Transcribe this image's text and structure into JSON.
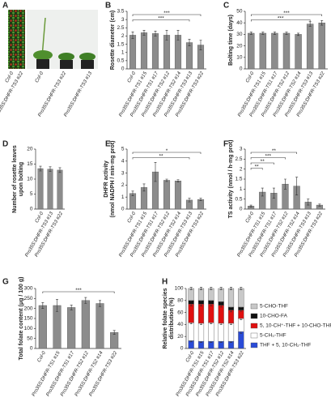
{
  "chart_data": [
    {
      "type": "image",
      "label": "A",
      "captions": [
        "Col-0",
        "Pro35S:DHFR-TS3 #22",
        "Col-0",
        "Pro35S:DHFR-TS3 #22",
        "Pro35S:DHFR-TS3 #13"
      ]
    },
    {
      "type": "bar",
      "label": "B",
      "y_label": [
        "Rosette diameter (cm)"
      ],
      "categories": [
        "Col-0",
        "Pro35S:DHFR-TS1 #15",
        "Pro35S:DHFR-TS1 #17",
        "Pro35S:DHFR-TS2 #12",
        "Pro35S:DHFR-TS2 #14",
        "Pro35S:DHFR-TS3 #13",
        "Pro35S:DHFR-TS3 #22"
      ],
      "values": [
        2.05,
        2.2,
        2.15,
        2.05,
        2.05,
        1.6,
        1.45
      ],
      "errors": [
        0.2,
        0.15,
        0.15,
        0.3,
        0.3,
        0.2,
        0.3
      ],
      "color": "#8c8c8c",
      "ylim": [
        0,
        3.5
      ],
      "yticks": [
        0,
        0.5,
        1,
        1.5,
        2,
        2.5,
        3,
        3.5
      ],
      "significance": [
        {
          "label": "***",
          "from": "Col-0",
          "to": "Pro35S:DHFR-TS3 #22"
        },
        {
          "label": "***",
          "from": "Col-0",
          "to": "Pro35S:DHFR-TS3 #13"
        }
      ]
    },
    {
      "type": "bar",
      "label": "C",
      "y_label": [
        "Bolting time (days)"
      ],
      "categories": [
        "Col-0",
        "Pro35S:DHFR-TS1 #15",
        "Pro35S:DHFR-TS1 #17",
        "Pro35S:DHFR-TS2 #12",
        "Pro35S:DHFR-TS2 #14",
        "Pro35S:DHFR-TS3 #13",
        "Pro35S:DHFR-TS3 #22"
      ],
      "values": [
        31,
        31,
        31,
        31,
        30,
        39,
        40
      ],
      "errors": [
        1,
        1,
        1,
        1,
        1,
        2,
        2
      ],
      "color": "#8c8c8c",
      "ylim": [
        0,
        50
      ],
      "yticks": [
        0,
        10,
        20,
        30,
        40,
        50
      ],
      "significance": [
        {
          "label": "***",
          "from": "Col-0",
          "to": "Pro35S:DHFR-TS3 #22"
        },
        {
          "label": "***",
          "from": "Col-0",
          "to": "Pro35S:DHFR-TS3 #13"
        }
      ]
    },
    {
      "type": "bar",
      "label": "D",
      "y_label": [
        "Number of rosette leaves",
        "upon bolting"
      ],
      "categories": [
        "Col-0",
        "Pro35S:DHFR-TS3 #13",
        "Pro35S:DHFR-TS3 #22"
      ],
      "values": [
        13.5,
        13.3,
        13
      ],
      "errors": [
        0.8,
        0.8,
        0.8
      ],
      "color": "#8c8c8c",
      "ylim": [
        0,
        20
      ],
      "yticks": [
        0,
        5,
        10,
        15,
        20
      ]
    },
    {
      "type": "bar",
      "label": "E",
      "y_label": [
        "DHFR activity",
        "(nmol NADPH / min·mg prot)"
      ],
      "categories": [
        "Col-0",
        "Pro35S:DHFR-TS1 #15",
        "Pro35S:DHFR-TS1 #17",
        "Pro35S:DHFR-TS2 #12",
        "Pro35S:DHFR-TS2 #14",
        "Pro35S:DHFR-TS3 #13",
        "Pro35S:DHFR-TS3 #22"
      ],
      "values": [
        1.3,
        1.8,
        3.1,
        2.4,
        2.35,
        0.75,
        0.8
      ],
      "errors": [
        0.2,
        0.3,
        0.8,
        0.1,
        0.1,
        0.15,
        0.1
      ],
      "color": "#8c8c8c",
      "ylim": [
        0,
        5
      ],
      "yticks": [
        0,
        1,
        2,
        3,
        4,
        5
      ],
      "significance": [
        {
          "label": "*",
          "from": "Col-0",
          "to": "Pro35S:DHFR-TS3 #22"
        },
        {
          "label": "**",
          "from": "Col-0",
          "to": "Pro35S:DHFR-TS3 #13"
        }
      ]
    },
    {
      "type": "bar",
      "label": "F",
      "y_label": [
        "TS activity (nmol / h·mg prot)"
      ],
      "categories": [
        "Col-0",
        "Pro35S:DHFR-TS1 #15",
        "Pro35S:DHFR-TS1 #17",
        "Pro35S:DHFR-TS2 #12",
        "Pro35S:DHFR-TS2 #14",
        "Pro35S:DHFR-TS3 #13",
        "Pro35S:DHFR-TS3 #22"
      ],
      "values": [
        0.15,
        0.85,
        0.8,
        1.25,
        1.15,
        0.35,
        0.2
      ],
      "errors": [
        0.05,
        0.2,
        0.25,
        0.25,
        0.45,
        0.15,
        0.05
      ],
      "color": "#8c8c8c",
      "ylim": [
        0,
        3
      ],
      "yticks": [
        0,
        0.5,
        1,
        1.5,
        2,
        2.5,
        3
      ],
      "significance": [
        {
          "label": "**",
          "from": "Col-0",
          "to": "Pro35S:DHFR-TS2 #14"
        },
        {
          "label": "***",
          "from": "Col-0",
          "to": "Pro35S:DHFR-TS2 #12"
        },
        {
          "label": "**",
          "from": "Col-0",
          "to": "Pro35S:DHFR-TS1 #17"
        },
        {
          "label": "**",
          "from": "Col-0",
          "to": "Pro35S:DHFR-TS1 #15"
        }
      ]
    },
    {
      "type": "bar",
      "label": "G",
      "y_label": [
        "Total folate content (μg / 100 g)"
      ],
      "categories": [
        "Col-0",
        "Pro35S:DHFR-TS1 #15",
        "Pro35S:DHFR-TS1 #17",
        "Pro35S:DHFR-TS2 #12",
        "Pro35S:DHFR-TS2 #14",
        "Pro35S:DHFR-TS3 #22"
      ],
      "values": [
        215,
        215,
        205,
        240,
        225,
        80
      ],
      "errors": [
        15,
        30,
        12,
        15,
        15,
        10
      ],
      "color": "#8c8c8c",
      "ylim": [
        0,
        300
      ],
      "yticks": [
        0,
        50,
        100,
        150,
        200,
        250,
        300
      ],
      "significance": [
        {
          "label": "***",
          "from": "Col-0",
          "to": "Pro35S:DHFR-TS3 #22"
        }
      ]
    },
    {
      "type": "stacked_bar",
      "label": "H",
      "y_label": [
        "Relative folate species",
        "distribution (%)"
      ],
      "categories": [
        "Col-0",
        "Pro35S:DHFR-TS1 #15",
        "Pro35S:DHFR-TS1 #17",
        "Pro35S:DHFR-TS2 #12",
        "Pro35S:DHFR-TS2 #14",
        "Pro35S:DHFR-TS3 #22"
      ],
      "ylim": [
        0,
        100
      ],
      "yticks": [
        0,
        20,
        40,
        60,
        80,
        100
      ],
      "series": [
        {
          "name": "THF + 5, 10-CH₂-THF",
          "color": "#2a4bd7",
          "values": [
            13,
            12,
            12,
            12,
            12,
            28
          ],
          "errors": [
            2,
            2,
            2,
            2,
            2,
            3
          ]
        },
        {
          "name": "5-CH₃-THF",
          "color": "#ffffff",
          "values": [
            30,
            30,
            31,
            30,
            30,
            22
          ],
          "errors": [
            2,
            2,
            2,
            2,
            2,
            2
          ]
        },
        {
          "name": "5, 10-CH⁺-THF + 10-CHO-THF",
          "color": "#e01010",
          "values": [
            31,
            32,
            31,
            30,
            22,
            14
          ],
          "errors": [
            3,
            3,
            3,
            3,
            3,
            2
          ]
        },
        {
          "name": "10-CHO-FA",
          "color": "#111111",
          "values": [
            6,
            6,
            6,
            6,
            5,
            5
          ],
          "errors": [
            1,
            1,
            1,
            1,
            1,
            1
          ]
        },
        {
          "name": "5-CHO-THF",
          "color": "#c8c8c8",
          "values": [
            20,
            20,
            20,
            22,
            31,
            31
          ],
          "errors": [
            2,
            2,
            2,
            2,
            2,
            2
          ]
        }
      ]
    }
  ]
}
